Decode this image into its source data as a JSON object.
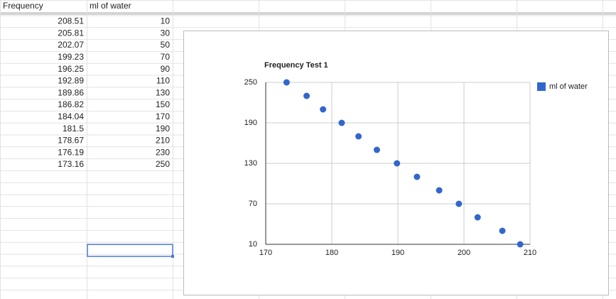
{
  "table": {
    "header": [
      "Frequency",
      "ml of water"
    ],
    "rows": [
      [
        "208.51",
        "10"
      ],
      [
        "205.81",
        "30"
      ],
      [
        "202.07",
        "50"
      ],
      [
        "199.23",
        "70"
      ],
      [
        "196.25",
        "90"
      ],
      [
        "192.89",
        "110"
      ],
      [
        "189.86",
        "130"
      ],
      [
        "186.82",
        "150"
      ],
      [
        "184.04",
        "170"
      ],
      [
        "181.5",
        "190"
      ],
      [
        "178.67",
        "210"
      ],
      [
        "176.19",
        "230"
      ],
      [
        "173.16",
        "250"
      ]
    ]
  },
  "chart_data": {
    "type": "scatter",
    "title": "Frequency Test 1",
    "x": [
      208.51,
      205.81,
      202.07,
      199.23,
      196.25,
      192.89,
      189.86,
      186.82,
      184.04,
      181.5,
      178.67,
      176.19,
      173.16
    ],
    "series": [
      {
        "name": "ml of water",
        "color": "#3366cc",
        "values": [
          10,
          30,
          50,
          70,
          90,
          110,
          130,
          150,
          170,
          190,
          210,
          230,
          250
        ]
      }
    ],
    "xlim": [
      170,
      210
    ],
    "xticks": [
      170,
      180,
      190,
      200,
      210
    ],
    "ylim": [
      10,
      250
    ],
    "yticks": [
      10,
      70,
      130,
      190,
      250
    ],
    "grid": true,
    "legend": "right"
  }
}
